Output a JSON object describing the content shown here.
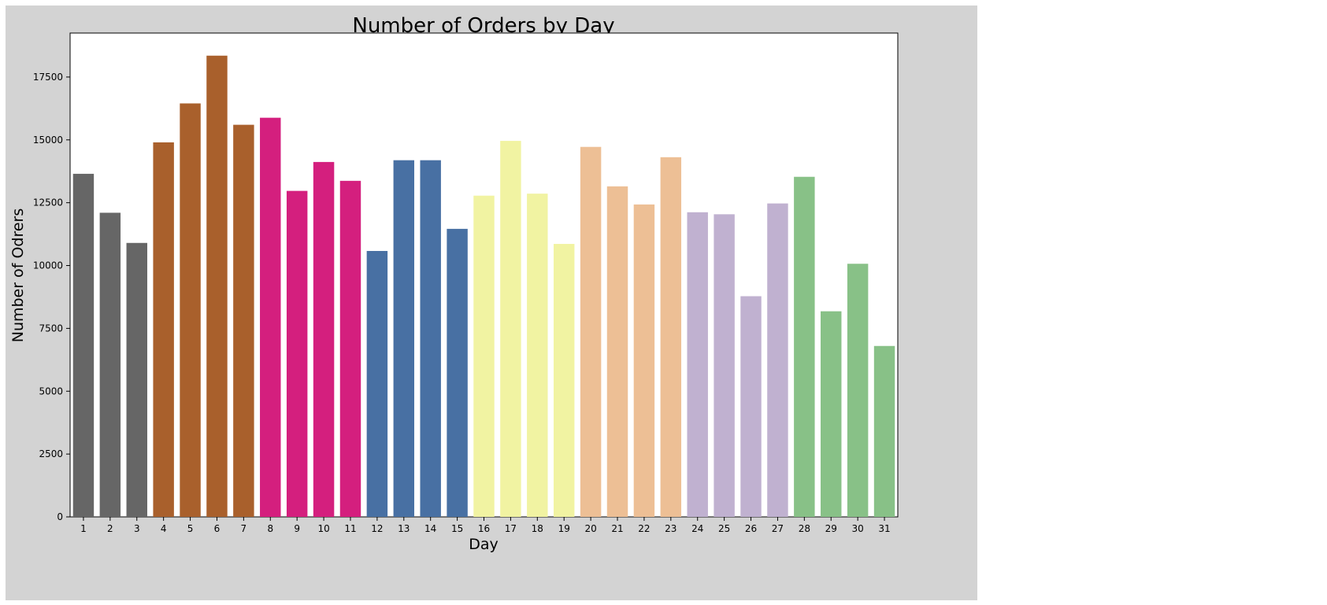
{
  "chart_data": {
    "type": "bar",
    "title": "Number of Orders by Day",
    "xlabel": "Day",
    "ylabel": "Number of Odrers",
    "categories": [
      "1",
      "2",
      "3",
      "4",
      "5",
      "6",
      "7",
      "8",
      "9",
      "10",
      "11",
      "12",
      "13",
      "14",
      "15",
      "16",
      "17",
      "18",
      "19",
      "20",
      "21",
      "22",
      "23",
      "24",
      "25",
      "26",
      "27",
      "28",
      "29",
      "30",
      "31"
    ],
    "values": [
      13650,
      12100,
      10900,
      14900,
      16450,
      18350,
      15600,
      15880,
      12970,
      14120,
      13370,
      10580,
      14190,
      14190,
      11460,
      12780,
      14960,
      12860,
      10860,
      14720,
      13150,
      12430,
      14310,
      12120,
      12040,
      8780,
      12470,
      13530,
      8180,
      10070,
      6800
    ],
    "colors": [
      "#666666",
      "#666666",
      "#666666",
      "#a9602c",
      "#a9602c",
      "#a9602c",
      "#a9602c",
      "#d41f7e",
      "#d41f7e",
      "#d41f7e",
      "#d41f7e",
      "#4870a3",
      "#4870a3",
      "#4870a3",
      "#4870a3",
      "#f1f3a2",
      "#f1f3a2",
      "#f1f3a2",
      "#f1f3a2",
      "#edbf95",
      "#edbf95",
      "#edbf95",
      "#edbf95",
      "#c0b1d0",
      "#c0b1d0",
      "#c0b1d0",
      "#c0b1d0",
      "#88c187",
      "#88c187",
      "#88c187",
      "#88c187"
    ],
    "yticks": [
      0,
      2500,
      5000,
      7500,
      10000,
      12500,
      15000,
      17500
    ],
    "ylim": [
      0,
      19250
    ],
    "grid": false,
    "background": "#d3d3d3",
    "plot_background": "#ffffff"
  }
}
